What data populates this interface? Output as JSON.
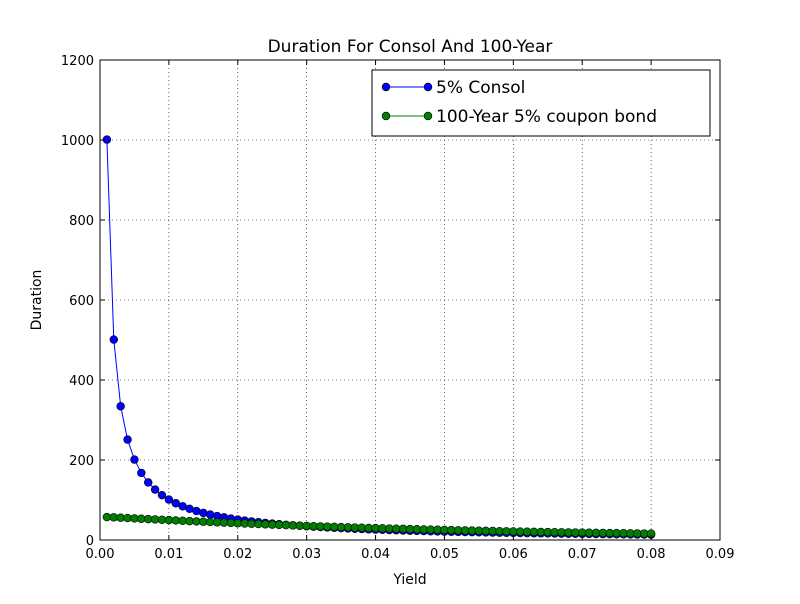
{
  "chart_data": {
    "type": "line",
    "title": "Duration For Consol And 100-Year",
    "xlabel": "Yield",
    "ylabel": "Duration",
    "xlim": [
      0.0,
      0.09
    ],
    "ylim": [
      0,
      1200
    ],
    "xticks": [
      0.0,
      0.01,
      0.02,
      0.03,
      0.04,
      0.05,
      0.06,
      0.07,
      0.08,
      0.09
    ],
    "xtick_labels": [
      "0.00",
      "0.01",
      "0.02",
      "0.03",
      "0.04",
      "0.05",
      "0.06",
      "0.07",
      "0.08",
      "0.09"
    ],
    "yticks": [
      0,
      200,
      400,
      600,
      800,
      1000,
      1200
    ],
    "ytick_labels": [
      "0",
      "200",
      "400",
      "600",
      "800",
      "1000",
      "1200"
    ],
    "grid": true,
    "legend_position": "top-right",
    "x": [
      0.001,
      0.002,
      0.003,
      0.004,
      0.005,
      0.006,
      0.007,
      0.008,
      0.009,
      0.01,
      0.011,
      0.012,
      0.013,
      0.014,
      0.015,
      0.016,
      0.017,
      0.018,
      0.019,
      0.02,
      0.021,
      0.022,
      0.023,
      0.024,
      0.025,
      0.026,
      0.027,
      0.028,
      0.029,
      0.03,
      0.031,
      0.032,
      0.033,
      0.034,
      0.035,
      0.036,
      0.037,
      0.038,
      0.039,
      0.04,
      0.041,
      0.042,
      0.043,
      0.044,
      0.045,
      0.046,
      0.047,
      0.048,
      0.049,
      0.05,
      0.051,
      0.052,
      0.053,
      0.054,
      0.055,
      0.056,
      0.057,
      0.058,
      0.059,
      0.06,
      0.061,
      0.062,
      0.063,
      0.064,
      0.065,
      0.066,
      0.067,
      0.068,
      0.069,
      0.07,
      0.071,
      0.072,
      0.073,
      0.074,
      0.075,
      0.076,
      0.077,
      0.078,
      0.079,
      0.08
    ],
    "series": [
      {
        "name": "5% Consol",
        "color": "#0000ff",
        "values": [
          1001,
          501,
          334.3,
          251,
          201,
          167.7,
          143.9,
          126,
          112.1,
          101,
          91.9,
          84.3,
          77.9,
          72.4,
          67.7,
          63.5,
          59.8,
          56.6,
          53.6,
          51,
          48.6,
          46.5,
          44.5,
          42.7,
          41,
          39.5,
          38,
          36.7,
          35.5,
          34.3,
          33.3,
          32.3,
          31.3,
          30.4,
          29.6,
          28.8,
          28,
          27.3,
          26.6,
          26,
          25.4,
          24.8,
          24.3,
          23.7,
          23.2,
          22.7,
          22.3,
          21.8,
          21.4,
          21,
          20.6,
          20.2,
          19.9,
          19.5,
          19.2,
          18.9,
          18.5,
          18.2,
          17.9,
          17.7,
          17.4,
          17.1,
          16.9,
          16.6,
          16.4,
          16.2,
          15.9,
          15.7,
          15.5,
          15.3,
          15.1,
          14.9,
          14.7,
          14.5,
          14.3,
          14.2,
          14,
          13.8,
          13.7,
          13.5
        ]
      },
      {
        "name": "100-Year 5% coupon bond",
        "color": "#008000",
        "values": [
          57.4,
          56.6,
          55.7,
          54.8,
          53.9,
          53.1,
          52.2,
          51.4,
          50.5,
          49.7,
          48.9,
          48,
          47.2,
          46.4,
          45.7,
          44.9,
          44.1,
          43.4,
          42.6,
          41.9,
          41.2,
          40.5,
          39.8,
          39.1,
          38.4,
          37.8,
          37.1,
          36.5,
          35.8,
          35.2,
          34.6,
          34,
          33.4,
          32.9,
          32.3,
          31.8,
          31.2,
          30.7,
          30.2,
          29.7,
          29.2,
          28.7,
          28.2,
          27.8,
          27.3,
          26.9,
          26.4,
          26,
          25.6,
          25.1,
          24.7,
          24.3,
          23.9,
          23.6,
          23.2,
          22.8,
          22.5,
          22.1,
          21.8,
          21.4,
          21.1,
          20.8,
          20.5,
          20.2,
          19.9,
          19.6,
          19.3,
          19,
          18.7,
          18.4,
          18.2,
          17.9,
          17.7,
          17.4,
          17.2,
          16.9,
          16.7,
          16.5,
          16.2,
          16
        ]
      }
    ]
  }
}
